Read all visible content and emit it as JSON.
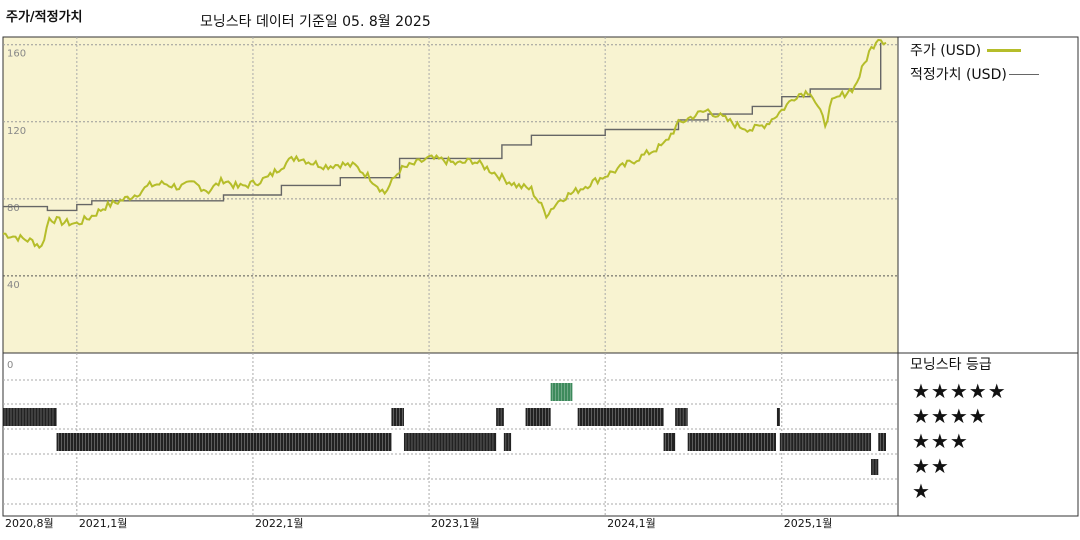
{
  "header": {
    "title": "주가/적정가치",
    "subtitle": "모닝스타 데이터 기준일 05. 8월 2025"
  },
  "colors": {
    "price": "#b5bd2a",
    "fair": "#666666",
    "plot_bg": "#f8f3d1",
    "rating_bar": "#222222",
    "rating_top": "#3d8a5c"
  },
  "legend": {
    "price_label": "주가 (USD)",
    "fair_label": "적정가치 (USD)"
  },
  "rating": {
    "title": "모닝스타 등급",
    "stars": [
      "★★★★★",
      "★★★★",
      "★★★",
      "★★",
      "★"
    ]
  },
  "chart_data": {
    "type": "line",
    "y_ticks": [
      "160",
      "120",
      "80",
      "40",
      "0"
    ],
    "ylim": [
      0,
      164
    ],
    "xlim": [
      "2020-08-01",
      "2025-08-05"
    ],
    "x_ticks": [
      {
        "date": "2020-08-01",
        "label": "2020,8월"
      },
      {
        "date": "2021-01-01",
        "label": "2021,1월"
      },
      {
        "date": "2022-01-01",
        "label": "2022,1월"
      },
      {
        "date": "2023-01-01",
        "label": "2023,1월"
      },
      {
        "date": "2024-01-01",
        "label": "2024,1월"
      },
      {
        "date": "2025-01-01",
        "label": "2025,1월"
      }
    ],
    "series": [
      {
        "name": "주가 (USD)",
        "points": [
          [
            "2020-08-01",
            62
          ],
          [
            "2020-09-01",
            60
          ],
          [
            "2020-10-01",
            58
          ],
          [
            "2020-10-20",
            55
          ],
          [
            "2020-11-05",
            70
          ],
          [
            "2020-12-01",
            68
          ],
          [
            "2021-01-01",
            67
          ],
          [
            "2021-02-01",
            71
          ],
          [
            "2021-03-01",
            76
          ],
          [
            "2021-04-01",
            79
          ],
          [
            "2021-05-01",
            82
          ],
          [
            "2021-06-01",
            87
          ],
          [
            "2021-07-01",
            88
          ],
          [
            "2021-08-01",
            86
          ],
          [
            "2021-09-01",
            88
          ],
          [
            "2021-10-01",
            84
          ],
          [
            "2021-11-01",
            90
          ],
          [
            "2021-12-01",
            86
          ],
          [
            "2022-01-01",
            88
          ],
          [
            "2022-02-01",
            91
          ],
          [
            "2022-03-01",
            97
          ],
          [
            "2022-04-01",
            102
          ],
          [
            "2022-05-01",
            99
          ],
          [
            "2022-06-01",
            97
          ],
          [
            "2022-07-01",
            98
          ],
          [
            "2022-08-01",
            97
          ],
          [
            "2022-09-01",
            91
          ],
          [
            "2022-10-01",
            83
          ],
          [
            "2022-11-01",
            95
          ],
          [
            "2022-12-01",
            98
          ],
          [
            "2023-01-01",
            101
          ],
          [
            "2023-02-01",
            100
          ],
          [
            "2023-03-01",
            98
          ],
          [
            "2023-04-01",
            100
          ],
          [
            "2023-05-01",
            96
          ],
          [
            "2023-06-01",
            91
          ],
          [
            "2023-07-01",
            87
          ],
          [
            "2023-08-01",
            85
          ],
          [
            "2023-09-01",
            72
          ],
          [
            "2023-10-01",
            80
          ],
          [
            "2023-11-01",
            84
          ],
          [
            "2023-12-01",
            88
          ],
          [
            "2024-01-01",
            92
          ],
          [
            "2024-02-01",
            96
          ],
          [
            "2024-03-01",
            100
          ],
          [
            "2024-04-01",
            104
          ],
          [
            "2024-05-01",
            108
          ],
          [
            "2024-06-01",
            119
          ],
          [
            "2024-07-01",
            123
          ],
          [
            "2024-08-01",
            126
          ],
          [
            "2024-09-01",
            122
          ],
          [
            "2024-10-01",
            118
          ],
          [
            "2024-11-01",
            116
          ],
          [
            "2024-12-01",
            119
          ],
          [
            "2025-01-01",
            126
          ],
          [
            "2025-02-01",
            134
          ],
          [
            "2025-03-01",
            136
          ],
          [
            "2025-04-01",
            119
          ],
          [
            "2025-04-15",
            130
          ],
          [
            "2025-05-01",
            133
          ],
          [
            "2025-06-01",
            138
          ],
          [
            "2025-07-01",
            156
          ],
          [
            "2025-07-20",
            164
          ],
          [
            "2025-08-05",
            161
          ]
        ]
      },
      {
        "name": "적정가치 (USD)",
        "points": [
          [
            "2020-08-01",
            76
          ],
          [
            "2020-11-01",
            76
          ],
          [
            "2020-11-01",
            74
          ],
          [
            "2021-01-01",
            74
          ],
          [
            "2021-01-01",
            77
          ],
          [
            "2021-02-01",
            77
          ],
          [
            "2021-02-01",
            79
          ],
          [
            "2021-11-01",
            79
          ],
          [
            "2021-11-01",
            82
          ],
          [
            "2022-03-01",
            82
          ],
          [
            "2022-03-01",
            87
          ],
          [
            "2022-07-01",
            87
          ],
          [
            "2022-07-01",
            91
          ],
          [
            "2022-11-01",
            91
          ],
          [
            "2022-11-01",
            101
          ],
          [
            "2023-06-01",
            101
          ],
          [
            "2023-06-01",
            108
          ],
          [
            "2023-08-01",
            108
          ],
          [
            "2023-08-01",
            113
          ],
          [
            "2024-01-01",
            113
          ],
          [
            "2024-01-01",
            116
          ],
          [
            "2024-06-01",
            116
          ],
          [
            "2024-06-01",
            121
          ],
          [
            "2024-08-01",
            121
          ],
          [
            "2024-08-01",
            124
          ],
          [
            "2024-11-01",
            124
          ],
          [
            "2024-11-01",
            128
          ],
          [
            "2025-01-01",
            128
          ],
          [
            "2025-01-01",
            133
          ],
          [
            "2025-03-01",
            133
          ],
          [
            "2025-03-01",
            137
          ],
          [
            "2025-07-01",
            137
          ],
          [
            "2025-07-25",
            137
          ],
          [
            "2025-07-25",
            161
          ]
        ]
      }
    ],
    "rating_history": [
      {
        "stars": 4,
        "start": "2020-08-01",
        "end": "2020-11-20"
      },
      {
        "stars": 3,
        "start": "2020-11-20",
        "end": "2022-10-15"
      },
      {
        "stars": 4,
        "start": "2022-10-15",
        "end": "2022-11-10"
      },
      {
        "stars": 3,
        "start": "2022-11-10",
        "end": "2023-05-20"
      },
      {
        "stars": 4,
        "start": "2023-05-20",
        "end": "2023-06-05"
      },
      {
        "stars": 3,
        "start": "2023-06-05",
        "end": "2023-06-20"
      },
      {
        "stars": 4,
        "start": "2023-07-20",
        "end": "2023-09-10"
      },
      {
        "stars": 5,
        "start": "2023-09-10",
        "end": "2023-10-25"
      },
      {
        "stars": 4,
        "start": "2023-11-05",
        "end": "2024-05-01"
      },
      {
        "stars": 3,
        "start": "2024-05-01",
        "end": "2024-05-25"
      },
      {
        "stars": 4,
        "start": "2024-05-25",
        "end": "2024-06-20"
      },
      {
        "stars": 3,
        "start": "2024-06-20",
        "end": "2024-12-20"
      },
      {
        "stars": 4,
        "start": "2024-12-22",
        "end": "2024-12-28"
      },
      {
        "stars": 3,
        "start": "2024-12-28",
        "end": "2025-07-05"
      },
      {
        "stars": 2,
        "start": "2025-07-05",
        "end": "2025-07-20"
      },
      {
        "stars": 3,
        "start": "2025-07-20",
        "end": "2025-08-05"
      }
    ]
  }
}
